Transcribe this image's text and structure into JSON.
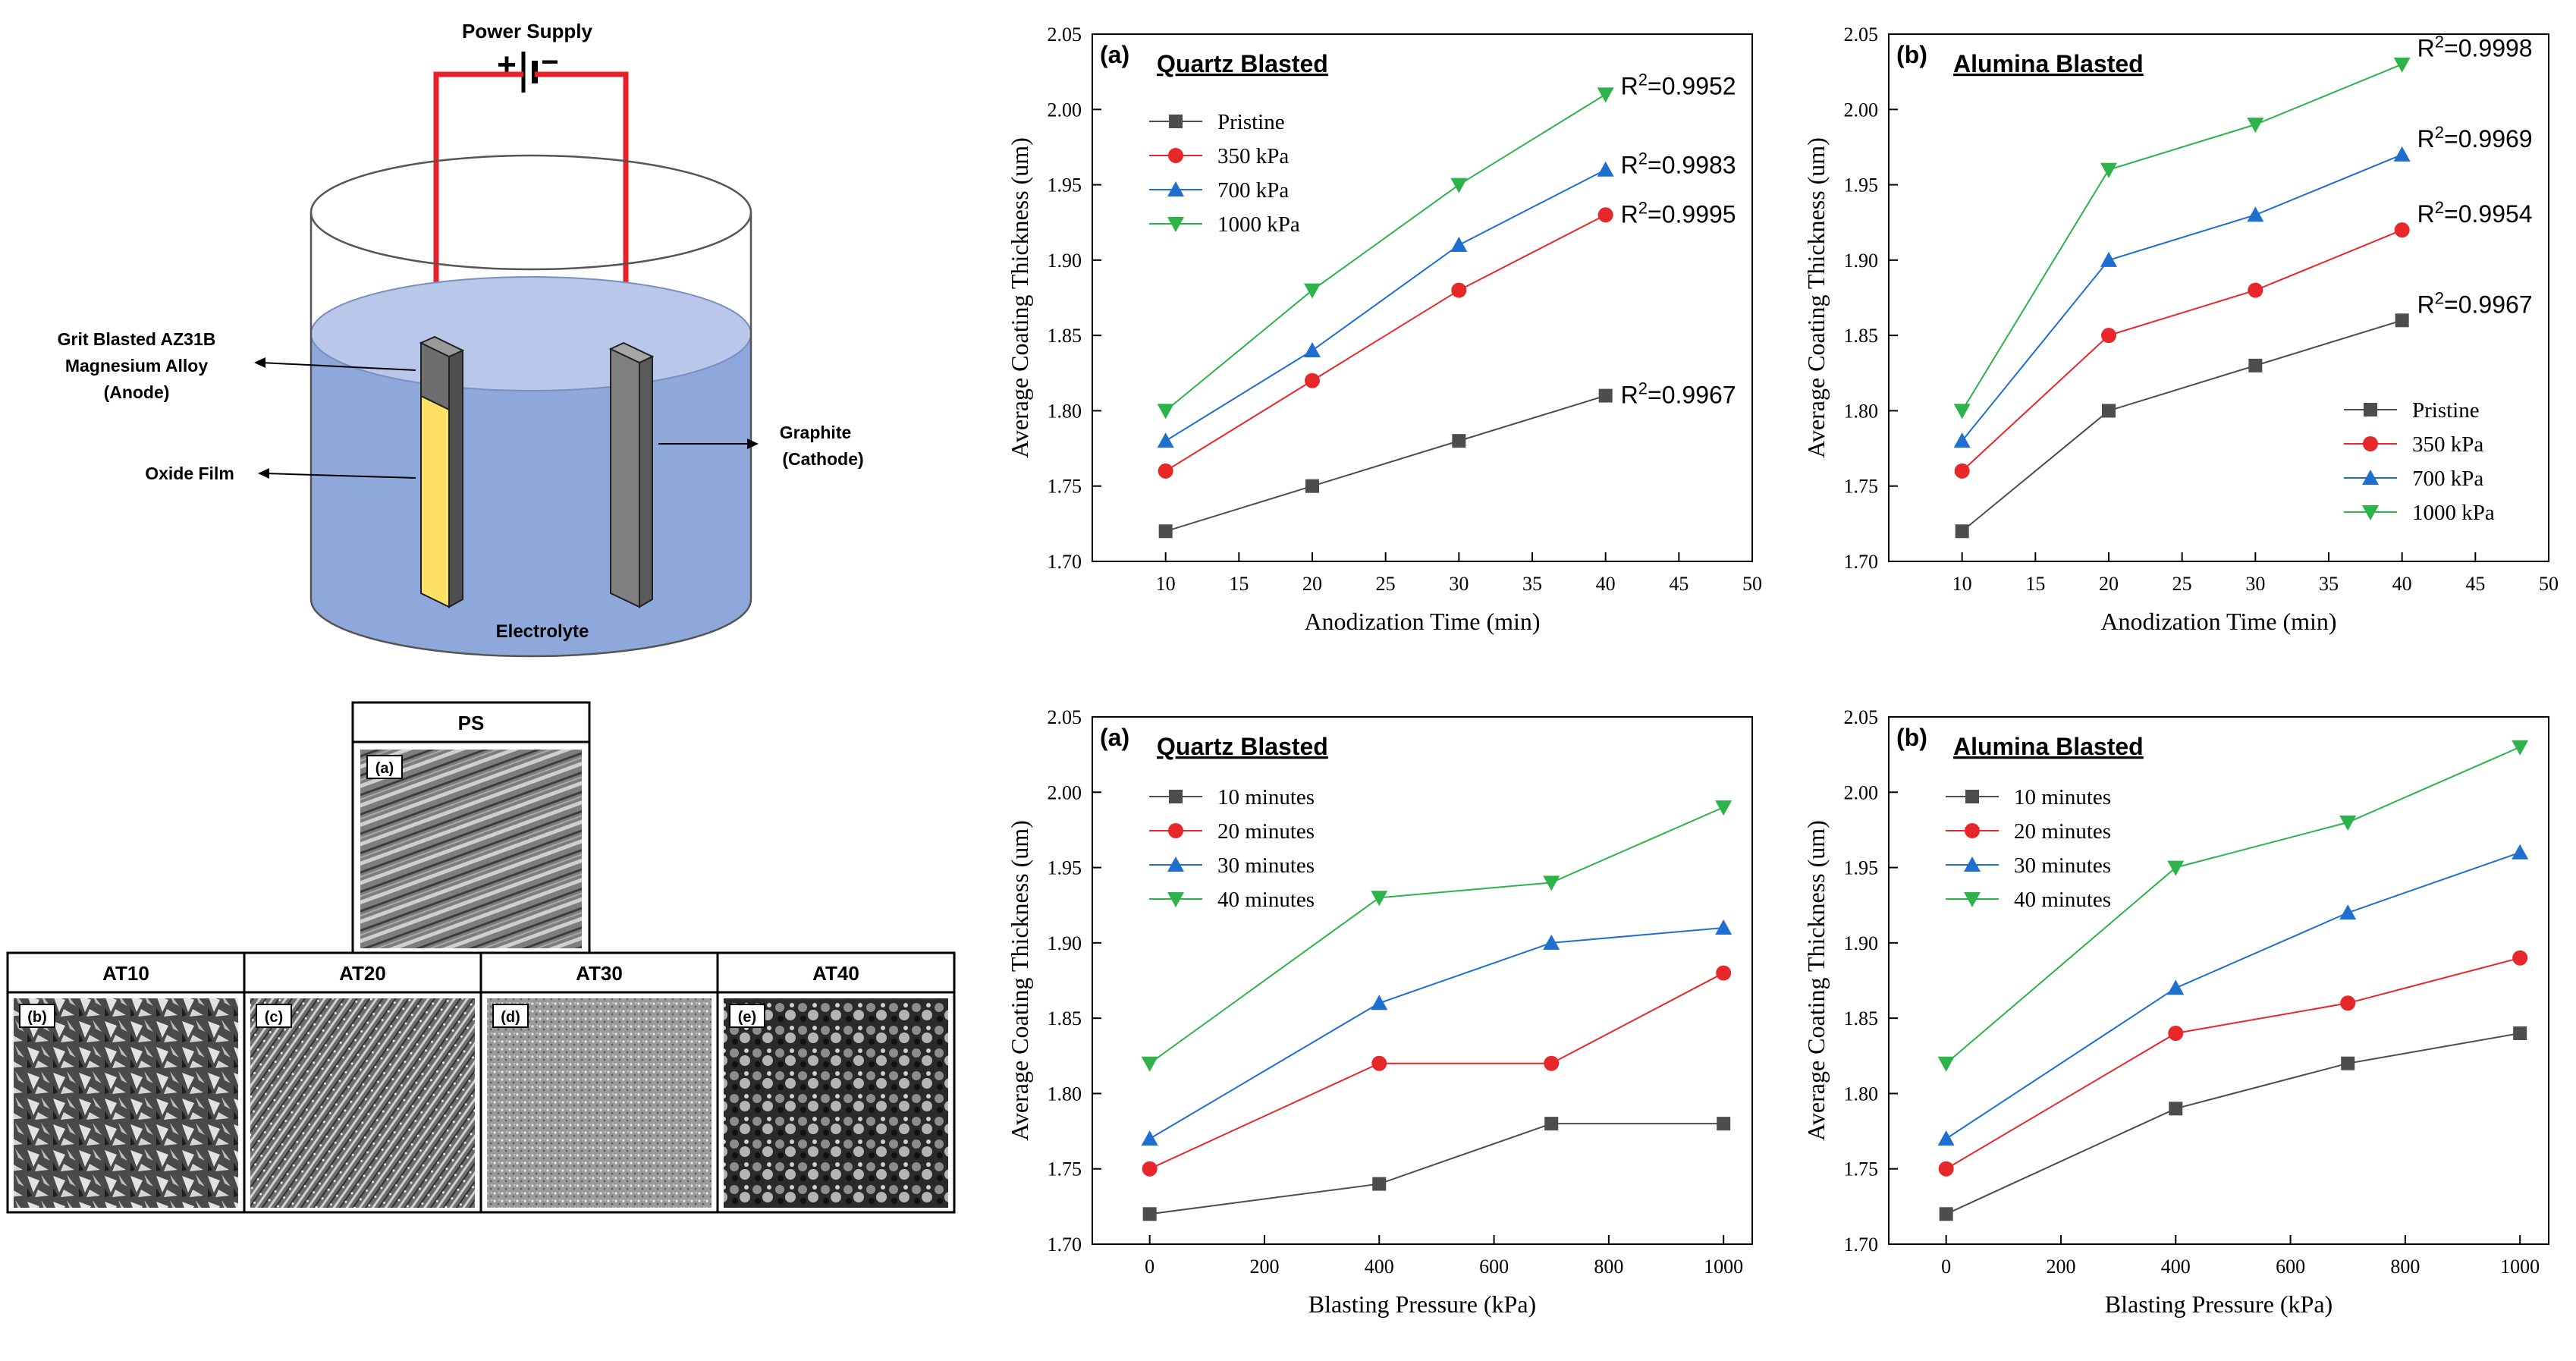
{
  "schematic": {
    "power_label": "Power Supply",
    "plus": "+",
    "minus": "−",
    "anode_label_1": "Grit Blasted AZ31B",
    "anode_label_2": "Magnesium Alloy",
    "anode_label_3": "(Anode)",
    "oxide_label": "Oxide Film",
    "cathode_label_1": "Graphite",
    "cathode_label_2": "(Cathode)",
    "electrolyte_label": "Electrolyte",
    "colors": {
      "wire": "#e8202a",
      "electrolyte": "#8fa8dc",
      "electrolyte_top": "#b9c8ea",
      "oxide": "#ffe066",
      "electrode": "#808080"
    }
  },
  "sem": {
    "top": {
      "header": "PS",
      "tag": "(a)"
    },
    "row": [
      {
        "header": "AT10",
        "tag": "(b)"
      },
      {
        "header": "AT20",
        "tag": "(c)"
      },
      {
        "header": "AT30",
        "tag": "(d)"
      },
      {
        "header": "AT40",
        "tag": "(e)"
      }
    ]
  },
  "chart_data": [
    {
      "type": "line",
      "panel": "(a)",
      "title": "Quartz Blasted",
      "xlabel": "Anodization Time (min)",
      "ylabel": "Average Coating Thickness (um)",
      "xlim": [
        5,
        50
      ],
      "ylim": [
        1.7,
        2.05
      ],
      "xticks": [
        "10",
        "15",
        "20",
        "25",
        "30",
        "35",
        "40",
        "45",
        "50"
      ],
      "yticks": [
        "1.70",
        "1.75",
        "1.80",
        "1.85",
        "1.90",
        "1.95",
        "2.00",
        "2.05"
      ],
      "x": [
        10,
        20,
        30,
        40
      ],
      "legend_position": "top-left",
      "series": [
        {
          "name": "Pristine",
          "values": [
            1.72,
            1.75,
            1.78,
            1.81
          ],
          "color": "#4d4d4d",
          "marker": "square",
          "r2": "R²=0.9967"
        },
        {
          "name": "350 kPa",
          "values": [
            1.76,
            1.82,
            1.88,
            1.93
          ],
          "color": "#e8272a",
          "marker": "circle",
          "r2": "R²=0.9995"
        },
        {
          "name": "700 kPa",
          "values": [
            1.78,
            1.84,
            1.91,
            1.96
          ],
          "color": "#1f6fd1",
          "marker": "triangle-up",
          "r2": "R²=0.9983"
        },
        {
          "name": "1000 kPa",
          "values": [
            1.8,
            1.88,
            1.95,
            2.01
          ],
          "color": "#2cb34a",
          "marker": "triangle-down",
          "r2": "R²=0.9952"
        }
      ]
    },
    {
      "type": "line",
      "panel": "(b)",
      "title": "Alumina Blasted",
      "xlabel": "Anodization Time (min)",
      "ylabel": "Average Coating Thickness (um)",
      "xlim": [
        5,
        50
      ],
      "ylim": [
        1.7,
        2.05
      ],
      "xticks": [
        "10",
        "15",
        "20",
        "25",
        "30",
        "35",
        "40",
        "45",
        "50"
      ],
      "yticks": [
        "1.70",
        "1.75",
        "1.80",
        "1.85",
        "1.90",
        "1.95",
        "2.00",
        "2.05"
      ],
      "x": [
        10,
        20,
        30,
        40
      ],
      "legend_position": "bottom-right",
      "series": [
        {
          "name": "Pristine",
          "values": [
            1.72,
            1.8,
            1.83,
            1.86
          ],
          "color": "#4d4d4d",
          "marker": "square",
          "r2": "R²=0.9967"
        },
        {
          "name": "350 kPa",
          "values": [
            1.76,
            1.85,
            1.88,
            1.92
          ],
          "color": "#e8272a",
          "marker": "circle",
          "r2": "R²=0.9954"
        },
        {
          "name": "700 kPa",
          "values": [
            1.78,
            1.9,
            1.93,
            1.97
          ],
          "color": "#1f6fd1",
          "marker": "triangle-up",
          "r2": "R²=0.9969"
        },
        {
          "name": "1000 kPa",
          "values": [
            1.8,
            1.96,
            1.99,
            2.03
          ],
          "color": "#2cb34a",
          "marker": "triangle-down",
          "r2": "R²=0.9998"
        }
      ]
    },
    {
      "type": "line",
      "panel": "(a)",
      "title": "Quartz Blasted",
      "xlabel": "Blasting Pressure (kPa)",
      "ylabel": "Average Coating Thickness (um)",
      "xlim": [
        -100,
        1050
      ],
      "ylim": [
        1.7,
        2.05
      ],
      "xticks": [
        "0",
        "200",
        "400",
        "600",
        "800",
        "1000"
      ],
      "yticks": [
        "1.70",
        "1.75",
        "1.80",
        "1.85",
        "1.90",
        "1.95",
        "2.00",
        "2.05"
      ],
      "x": [
        0,
        400,
        700,
        1000
      ],
      "legend_position": "top-left",
      "series": [
        {
          "name": "10 minutes",
          "values": [
            1.72,
            1.74,
            1.78,
            1.78
          ],
          "color": "#4d4d4d",
          "marker": "square"
        },
        {
          "name": "20 minutes",
          "values": [
            1.75,
            1.82,
            1.82,
            1.88
          ],
          "color": "#e8272a",
          "marker": "circle"
        },
        {
          "name": "30 minutes",
          "values": [
            1.77,
            1.86,
            1.9,
            1.91
          ],
          "color": "#1f6fd1",
          "marker": "triangle-up"
        },
        {
          "name": "40 minutes",
          "values": [
            1.82,
            1.93,
            1.94,
            1.99
          ],
          "color": "#2cb34a",
          "marker": "triangle-down"
        }
      ]
    },
    {
      "type": "line",
      "panel": "(b)",
      "title": "Alumina Blasted",
      "xlabel": "Blasting Pressure (kPa)",
      "ylabel": "Average Coating Thickness (um)",
      "xlim": [
        -100,
        1050
      ],
      "ylim": [
        1.7,
        2.05
      ],
      "xticks": [
        "0",
        "200",
        "400",
        "600",
        "800",
        "1000"
      ],
      "yticks": [
        "1.70",
        "1.75",
        "1.80",
        "1.85",
        "1.90",
        "1.95",
        "2.00",
        "2.05"
      ],
      "x": [
        0,
        400,
        700,
        1000
      ],
      "legend_position": "top-left",
      "series": [
        {
          "name": "10 minutes",
          "values": [
            1.72,
            1.79,
            1.82,
            1.84
          ],
          "color": "#4d4d4d",
          "marker": "square"
        },
        {
          "name": "20 minutes",
          "values": [
            1.75,
            1.84,
            1.86,
            1.89
          ],
          "color": "#e8272a",
          "marker": "circle"
        },
        {
          "name": "30 minutes",
          "values": [
            1.77,
            1.87,
            1.92,
            1.96
          ],
          "color": "#1f6fd1",
          "marker": "triangle-up"
        },
        {
          "name": "40 minutes",
          "values": [
            1.82,
            1.95,
            1.98,
            2.03
          ],
          "color": "#2cb34a",
          "marker": "triangle-down"
        }
      ]
    }
  ]
}
